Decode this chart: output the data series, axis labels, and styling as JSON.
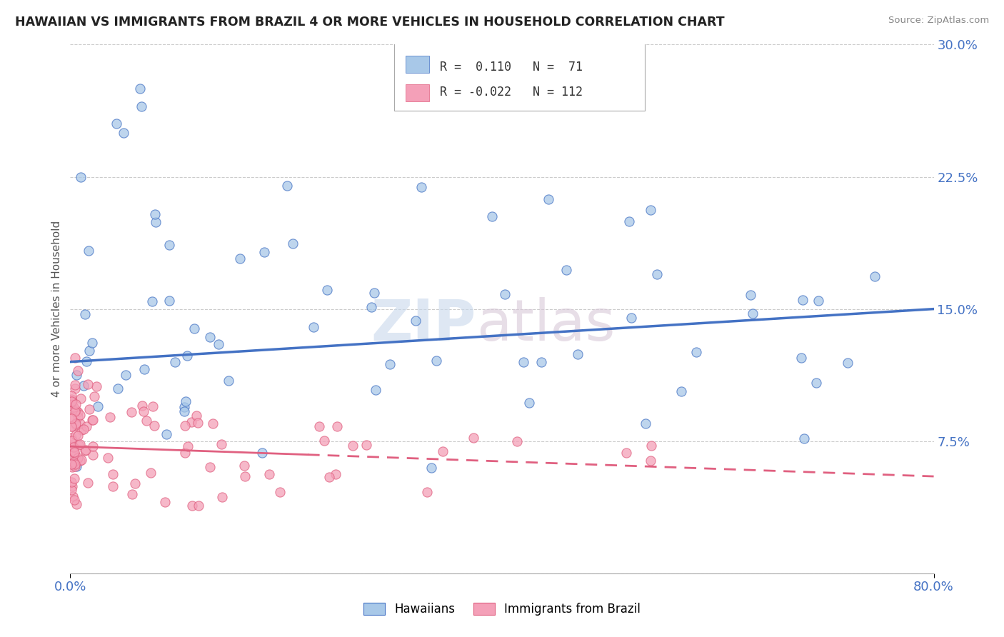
{
  "title": "HAWAIIAN VS IMMIGRANTS FROM BRAZIL 4 OR MORE VEHICLES IN HOUSEHOLD CORRELATION CHART",
  "source": "Source: ZipAtlas.com",
  "ylabel": "4 or more Vehicles in Household",
  "x_min": 0.0,
  "x_max": 80.0,
  "y_min": 0.0,
  "y_max": 30.0,
  "y_ticks": [
    0.0,
    7.5,
    15.0,
    22.5,
    30.0
  ],
  "y_tick_labels": [
    "",
    "7.5%",
    "15.0%",
    "22.5%",
    "30.0%"
  ],
  "x_tick_labels": [
    "0.0%",
    "80.0%"
  ],
  "legend_hawaiians": "Hawaiians",
  "legend_immigrants": "Immigrants from Brazil",
  "r_hawaiians": 0.11,
  "n_hawaiians": 71,
  "r_immigrants": -0.022,
  "n_immigrants": 112,
  "color_hawaiians": "#a8c8e8",
  "color_immigrants": "#f4a0b8",
  "color_line_hawaiians": "#4472c4",
  "color_line_immigrants": "#e06080",
  "line_h_x0": 0,
  "line_h_y0": 12.0,
  "line_h_x1": 80,
  "line_h_y1": 15.0,
  "line_i_x0": 0,
  "line_i_y0": 7.2,
  "line_i_x1": 80,
  "line_i_y1": 5.5,
  "watermark": "ZIPatlas",
  "title_fontsize": 12.5,
  "tick_fontsize": 13,
  "ylabel_fontsize": 11
}
